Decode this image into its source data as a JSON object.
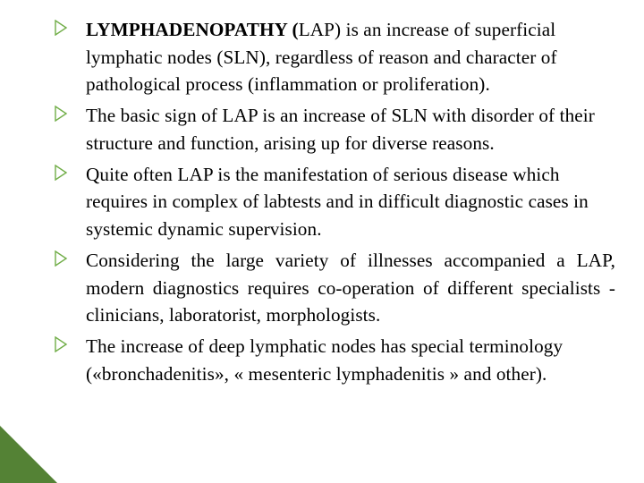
{
  "bullet_color": "#70ad47",
  "text_color": "#000000",
  "items": [
    {
      "bold_lead": "LYMPHADENOPATHY (",
      "rest": "LAP) is an increase of superficial lymphatic nodes (SLN), regardless of reason and character of pathological process (inflammation or proliferation).",
      "justify": false
    },
    {
      "bold_lead": "",
      "rest": "The basic  sign of LAP is an increase of SLN with disorder of their structure and function, arising up for diverse reasons.",
      "justify": false
    },
    {
      "bold_lead": "",
      "rest": "Quite often LAP is the manifestation of serious disease which requires in complex of labtests and in difficult diagnostic cases in systemic dynamic supervision.",
      "justify": false
    },
    {
      "bold_lead": "",
      "rest": "Considering the large variety of illnesses accompanied a LAP,  modern  diagnostics  requires  co-operation  of different  specialists  -  clinicians,  laboratorist, morphologists.",
      "justify": true
    },
    {
      "bold_lead": "",
      "rest": "The increase of deep lymphatic nodes has special terminology («bronchadenitis», « mesenteric lymphadenitis » and other).",
      "justify": false
    }
  ]
}
